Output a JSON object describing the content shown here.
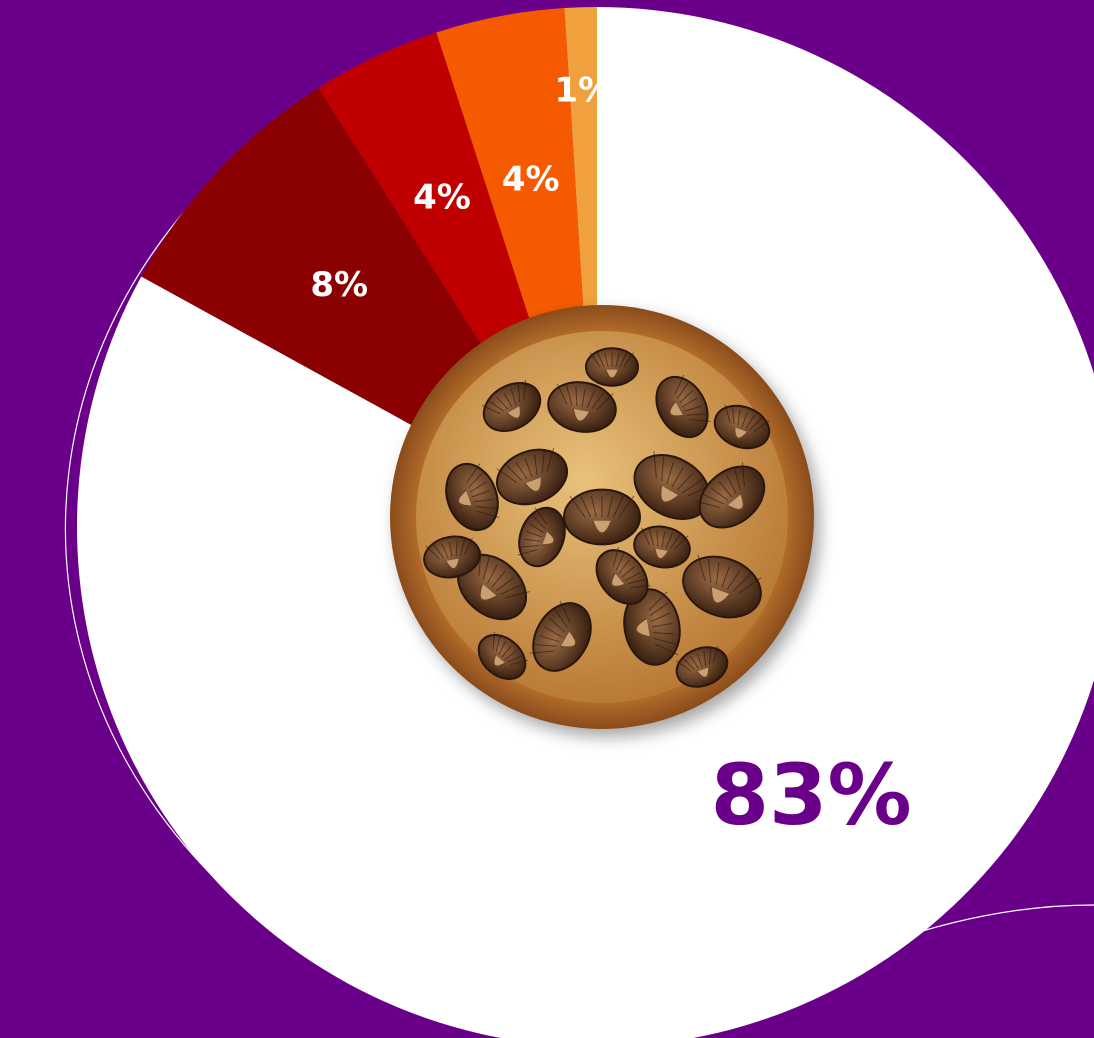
{
  "chart_data": {
    "type": "pie",
    "title": "",
    "slices": [
      {
        "label": "83%",
        "value": 83,
        "color": "#ffffff",
        "text_color": "#6a008a"
      },
      {
        "label": "8%",
        "value": 8,
        "color": "#8b0000",
        "text_color": "#ffffff"
      },
      {
        "label": "4%",
        "value": 4,
        "color": "#c00000",
        "text_color": "#ffffff"
      },
      {
        "label": "4%",
        "value": 4,
        "color": "#f55a00",
        "text_color": "#ffffff"
      },
      {
        "label": "1%",
        "value": 1,
        "color": "#f0a03c",
        "text_color": "#ffffff"
      }
    ]
  },
  "colors": {
    "background": "#6a008a",
    "accent_line": "#ffffff"
  },
  "center_image": {
    "icon": "mushroom-pizza-icon"
  }
}
